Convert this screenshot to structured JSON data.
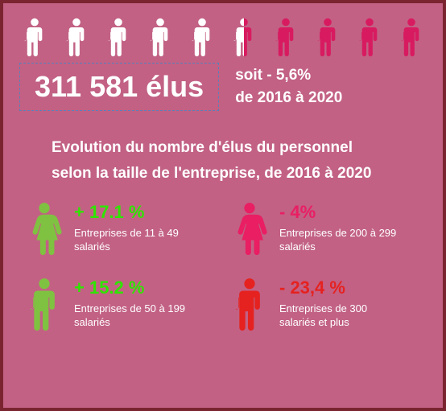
{
  "type": "infographic",
  "background_color": "#c26184",
  "border_color": "#7a2430",
  "text_color": "#ffffff",
  "headline": {
    "number": "311 581 élus",
    "box_border_color": "#5a7fb8",
    "sub_line1": "soit - 5,6%",
    "sub_line2": "de 2016 à 2020",
    "fontsize_main": 36,
    "fontsize_sub": 19
  },
  "icon_row": {
    "count": 10,
    "white_color": "#ffffff",
    "pink_color": "#d81b60",
    "split_index": 5,
    "white_full": 5,
    "half": 1,
    "pink_full": 4
  },
  "section_title": {
    "line1": "Evolution du nombre d'élus du personnel",
    "line2": "selon la taille de l'entreprise, de 2016 à 2020",
    "fontsize": 19
  },
  "categories": [
    {
      "pct": "+ 17.1 %",
      "pct_color": "#2ee600",
      "label": "Entreprises de 11 à 49 salariés",
      "icon_color": "#7fc241",
      "icon_type": "female"
    },
    {
      "pct": "- 4%",
      "pct_color": "#e91e63",
      "label": "Entreprises de 200 à 299 salariés",
      "icon_color": "#e91e63",
      "icon_type": "female"
    },
    {
      "pct": "+ 15.2 %",
      "pct_color": "#2ee600",
      "label": "Entreprises de 50 à 199 salariés",
      "icon_color": "#7fc241",
      "icon_type": "male"
    },
    {
      "pct": "- 23,4 %",
      "pct_color": "#e52220",
      "label": "Entreprises de 300 salariés et plus",
      "icon_color": "#e52220",
      "icon_type": "male"
    }
  ]
}
